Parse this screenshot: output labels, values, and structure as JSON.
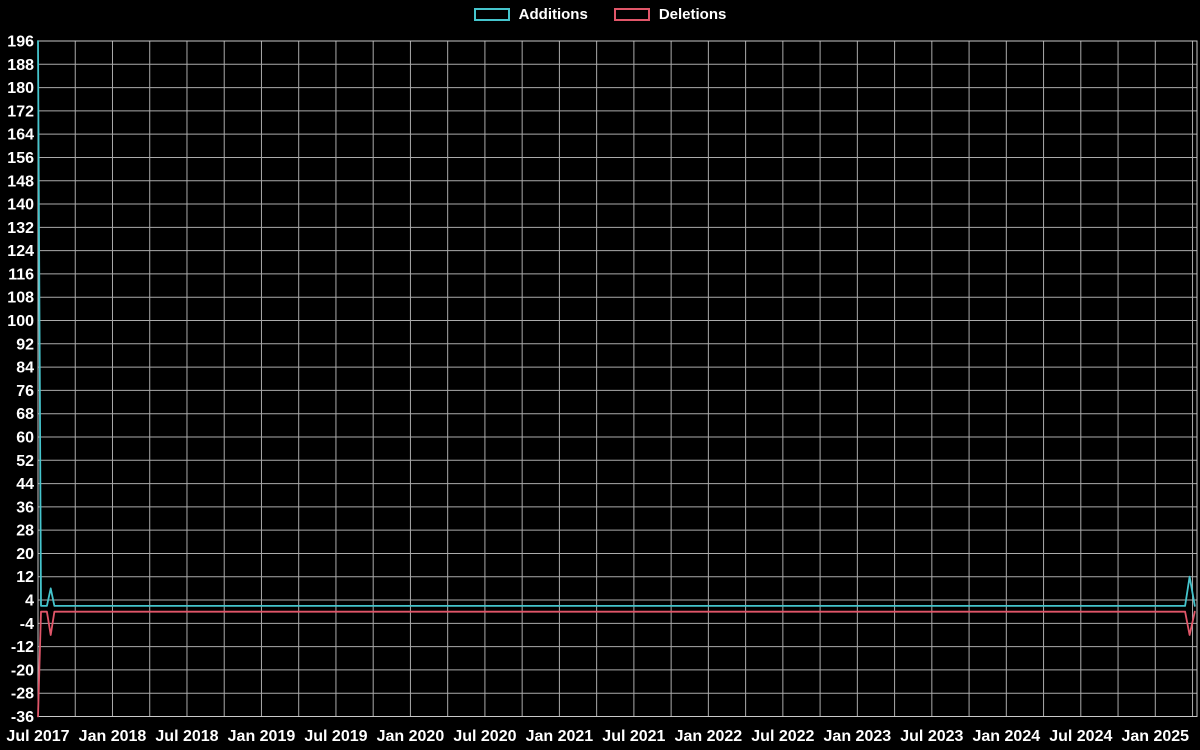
{
  "legend": {
    "items": [
      {
        "label": "Additions",
        "color": "#45c5cd"
      },
      {
        "label": "Deletions",
        "color": "#e15669"
      }
    ]
  },
  "chart_data": {
    "type": "line",
    "title": "",
    "background": "#000000",
    "grid": {
      "color": "#c9c9c9",
      "show": true
    },
    "text_color": "#ffffff",
    "x_axis": {
      "label": "",
      "range": [
        2017.5,
        2025.28
      ],
      "tick_positions": [
        2017.5,
        2018.0,
        2018.5,
        2019.0,
        2019.5,
        2020.0,
        2020.5,
        2021.0,
        2021.5,
        2022.0,
        2022.5,
        2023.0,
        2023.5,
        2024.0,
        2024.5,
        2025.0
      ],
      "tick_labels": [
        "Jul 2017",
        "Jan 2018",
        "Jul 2018",
        "Jan 2019",
        "Jul 2019",
        "Jan 2020",
        "Jul 2020",
        "Jan 2021",
        "Jul 2021",
        "Jan 2022",
        "Jul 2022",
        "Jan 2023",
        "Jul 2023",
        "Jan 2024",
        "Jul 2024",
        "Jan 2025"
      ],
      "minor_grid_step": 0.25
    },
    "y_axis": {
      "label": "",
      "range": [
        -36,
        196
      ],
      "tick_step": 8,
      "tick_values": [
        196,
        188,
        180,
        172,
        164,
        156,
        148,
        140,
        132,
        124,
        116,
        108,
        100,
        92,
        84,
        76,
        68,
        60,
        52,
        44,
        36,
        28,
        20,
        12,
        4,
        -4,
        -12,
        -20,
        -28,
        -36
      ]
    },
    "series": [
      {
        "name": "Additions",
        "color": "#45c5cd",
        "points": [
          [
            2017.5,
            196
          ],
          [
            2017.52,
            2
          ],
          [
            2017.56,
            2
          ],
          [
            2017.585,
            8
          ],
          [
            2017.61,
            2
          ],
          [
            2025.2,
            2
          ],
          [
            2025.23,
            12
          ],
          [
            2025.265,
            2
          ]
        ]
      },
      {
        "name": "Deletions",
        "color": "#e15669",
        "points": [
          [
            2017.5,
            -36
          ],
          [
            2017.52,
            0
          ],
          [
            2017.56,
            0
          ],
          [
            2017.585,
            -8
          ],
          [
            2017.61,
            0
          ],
          [
            2025.2,
            0
          ],
          [
            2025.23,
            -8
          ],
          [
            2025.265,
            0
          ]
        ]
      }
    ]
  }
}
